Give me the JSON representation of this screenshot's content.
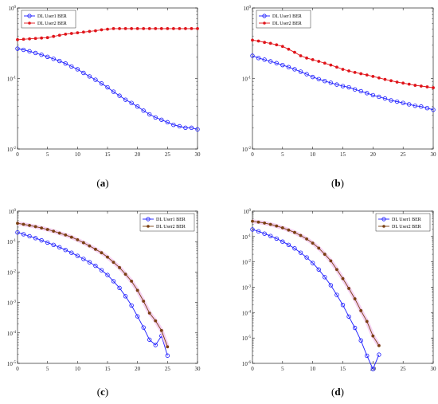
{
  "chart_data": [
    {
      "type": "line",
      "caption": {
        "open": "(",
        "letter": "a",
        "close": ")"
      },
      "xlim": [
        0,
        30
      ],
      "ylim": [
        0.01,
        1
      ],
      "yscale": "log",
      "x_ticks": [
        0,
        5,
        10,
        15,
        20,
        25,
        30
      ],
      "y_ticks": [
        {
          "value": 0.01,
          "base": "10",
          "exp": "-2"
        },
        {
          "value": 0.1,
          "base": "10",
          "exp": "-1"
        },
        {
          "value": 1,
          "base": "10",
          "exp": "0"
        }
      ],
      "legend_position": "top-left",
      "series": [
        {
          "name": "DL User1 BER",
          "color": "#1a1aff",
          "marker": "circle",
          "x": [
            0,
            1,
            2,
            3,
            4,
            5,
            6,
            7,
            8,
            9,
            10,
            11,
            12,
            13,
            14,
            15,
            16,
            17,
            18,
            19,
            20,
            21,
            22,
            23,
            24,
            25,
            26,
            27,
            28,
            29,
            30
          ],
          "y": [
            0.265,
            0.255,
            0.243,
            0.23,
            0.217,
            0.203,
            0.19,
            0.177,
            0.163,
            0.148,
            0.135,
            0.12,
            0.107,
            0.096,
            0.085,
            0.075,
            0.065,
            0.057,
            0.05,
            0.045,
            0.04,
            0.035,
            0.031,
            0.028,
            0.026,
            0.024,
            0.022,
            0.021,
            0.02,
            0.02,
            0.019
          ]
        },
        {
          "name": "DL User2 BER",
          "color": "#e0151b",
          "marker": "dot",
          "x": [
            0,
            1,
            2,
            3,
            4,
            5,
            6,
            7,
            8,
            9,
            10,
            11,
            12,
            13,
            14,
            15,
            16,
            17,
            18,
            19,
            20,
            21,
            22,
            23,
            24,
            25,
            26,
            27,
            28,
            29,
            30
          ],
          "y": [
            0.355,
            0.36,
            0.365,
            0.37,
            0.375,
            0.38,
            0.395,
            0.41,
            0.425,
            0.435,
            0.445,
            0.455,
            0.465,
            0.475,
            0.49,
            0.5,
            0.51,
            0.51,
            0.51,
            0.51,
            0.51,
            0.51,
            0.51,
            0.51,
            0.51,
            0.51,
            0.51,
            0.51,
            0.51,
            0.51,
            0.51
          ]
        }
      ]
    },
    {
      "type": "line",
      "caption": {
        "open": "(",
        "letter": "b",
        "close": ")"
      },
      "xlim": [
        0,
        30
      ],
      "ylim": [
        0.01,
        1
      ],
      "yscale": "log",
      "x_ticks": [
        0,
        5,
        10,
        15,
        20,
        25,
        30
      ],
      "y_ticks": [
        {
          "value": 0.01,
          "base": "10",
          "exp": "-2"
        },
        {
          "value": 0.1,
          "base": "10",
          "exp": "-1"
        },
        {
          "value": 1,
          "base": "10",
          "exp": "0"
        }
      ],
      "legend_position": "top-left",
      "series": [
        {
          "name": "DL User1 BER",
          "color": "#1a1aff",
          "marker": "circle",
          "x": [
            0,
            1,
            2,
            3,
            4,
            5,
            6,
            7,
            8,
            9,
            10,
            11,
            12,
            13,
            14,
            15,
            16,
            17,
            18,
            19,
            20,
            21,
            22,
            23,
            24,
            25,
            26,
            27,
            28,
            29,
            30
          ],
          "y": [
            0.21,
            0.195,
            0.185,
            0.175,
            0.165,
            0.155,
            0.145,
            0.135,
            0.125,
            0.115,
            0.105,
            0.098,
            0.092,
            0.087,
            0.082,
            0.078,
            0.075,
            0.07,
            0.066,
            0.062,
            0.058,
            0.055,
            0.052,
            0.049,
            0.047,
            0.045,
            0.043,
            0.041,
            0.04,
            0.038,
            0.036
          ]
        },
        {
          "name": "DL User2 BER",
          "color": "#e0151b",
          "marker": "dot",
          "x": [
            0,
            1,
            2,
            3,
            4,
            5,
            6,
            7,
            8,
            9,
            10,
            11,
            12,
            13,
            14,
            15,
            16,
            17,
            18,
            19,
            20,
            21,
            22,
            23,
            24,
            25,
            26,
            27,
            28,
            29,
            30
          ],
          "y": [
            0.35,
            0.34,
            0.325,
            0.315,
            0.3,
            0.285,
            0.26,
            0.235,
            0.21,
            0.195,
            0.185,
            0.175,
            0.165,
            0.155,
            0.145,
            0.135,
            0.128,
            0.122,
            0.117,
            0.112,
            0.107,
            0.102,
            0.097,
            0.093,
            0.089,
            0.086,
            0.083,
            0.08,
            0.078,
            0.076,
            0.074
          ]
        }
      ]
    },
    {
      "type": "line",
      "caption": {
        "open": "(",
        "letter": "c",
        "close": ")"
      },
      "xlim": [
        0,
        30
      ],
      "ylim": [
        1e-05,
        1
      ],
      "yscale": "log",
      "x_ticks": [
        0,
        5,
        10,
        15,
        20,
        25,
        30
      ],
      "y_ticks": [
        {
          "value": 1e-05,
          "base": "10",
          "exp": "-5"
        },
        {
          "value": 0.0001,
          "base": "10",
          "exp": "-4"
        },
        {
          "value": 0.001,
          "base": "10",
          "exp": "-3"
        },
        {
          "value": 0.01,
          "base": "10",
          "exp": "-2"
        },
        {
          "value": 0.1,
          "base": "10",
          "exp": "-1"
        },
        {
          "value": 1,
          "base": "10",
          "exp": "0"
        }
      ],
      "legend_position": "top-right",
      "series": [
        {
          "name": "DL User1 BER",
          "color": "#1a1aff",
          "marker": "circle",
          "x": [
            0,
            1,
            2,
            3,
            4,
            5,
            6,
            7,
            8,
            9,
            10,
            11,
            12,
            13,
            14,
            15,
            16,
            17,
            18,
            19,
            20,
            21,
            22,
            23,
            24,
            25
          ],
          "y": [
            0.2,
            0.175,
            0.15,
            0.13,
            0.11,
            0.093,
            0.078,
            0.065,
            0.053,
            0.043,
            0.034,
            0.027,
            0.021,
            0.016,
            0.0115,
            0.008,
            0.005,
            0.003,
            0.0016,
            0.0008,
            0.00035,
            0.00015,
            6e-05,
            4e-05,
            8e-05,
            1.8e-05
          ]
        },
        {
          "name": "DL User2 BER",
          "color": "#7a4012",
          "marker": "dot",
          "x": [
            0,
            1,
            2,
            3,
            4,
            5,
            6,
            7,
            8,
            9,
            10,
            11,
            12,
            13,
            14,
            15,
            16,
            17,
            18,
            19,
            20,
            21,
            22,
            23,
            24,
            25
          ],
          "y": [
            0.4,
            0.37,
            0.34,
            0.31,
            0.28,
            0.25,
            0.22,
            0.19,
            0.165,
            0.14,
            0.115,
            0.092,
            0.072,
            0.056,
            0.043,
            0.031,
            0.021,
            0.014,
            0.0085,
            0.005,
            0.0025,
            0.0011,
            0.00045,
            0.00025,
            0.00012,
            3.5e-05
          ]
        }
      ]
    },
    {
      "type": "line",
      "caption": {
        "open": "(",
        "letter": "d",
        "close": ")"
      },
      "xlim": [
        0,
        30
      ],
      "ylim": [
        1e-06,
        1
      ],
      "yscale": "log",
      "x_ticks": [
        0,
        5,
        10,
        15,
        20,
        25,
        30
      ],
      "y_ticks": [
        {
          "value": 1e-06,
          "base": "10",
          "exp": "-6"
        },
        {
          "value": 1e-05,
          "base": "10",
          "exp": "-5"
        },
        {
          "value": 0.0001,
          "base": "10",
          "exp": "-4"
        },
        {
          "value": 0.001,
          "base": "10",
          "exp": "-3"
        },
        {
          "value": 0.01,
          "base": "10",
          "exp": "-2"
        },
        {
          "value": 0.1,
          "base": "10",
          "exp": "-1"
        },
        {
          "value": 1,
          "base": "10",
          "exp": "0"
        }
      ],
      "legend_position": "top-right",
      "series": [
        {
          "name": "DL User1 BER",
          "color": "#1a1aff",
          "marker": "circle",
          "x": [
            0,
            1,
            2,
            3,
            4,
            5,
            6,
            7,
            8,
            9,
            10,
            11,
            12,
            13,
            14,
            15,
            16,
            17,
            18,
            19,
            20,
            21
          ],
          "y": [
            0.19,
            0.16,
            0.13,
            0.105,
            0.083,
            0.063,
            0.047,
            0.034,
            0.023,
            0.015,
            0.009,
            0.005,
            0.0025,
            0.0012,
            0.0005,
            0.0002,
            7e-05,
            2.5e-05,
            8e-06,
            2e-06,
            6e-07,
            2.2e-06
          ]
        },
        {
          "name": "DL User2 BER",
          "color": "#7a4012",
          "marker": "dot",
          "x": [
            0,
            1,
            2,
            3,
            4,
            5,
            6,
            7,
            8,
            9,
            10,
            11,
            12,
            13,
            14,
            15,
            16,
            17,
            18,
            19,
            20,
            21
          ],
          "y": [
            0.4,
            0.37,
            0.34,
            0.3,
            0.26,
            0.22,
            0.18,
            0.145,
            0.11,
            0.08,
            0.055,
            0.035,
            0.02,
            0.011,
            0.005,
            0.0022,
            0.0009,
            0.00035,
            0.00012,
            4.5e-05,
            1.2e-05,
            5e-06
          ]
        }
      ]
    }
  ]
}
